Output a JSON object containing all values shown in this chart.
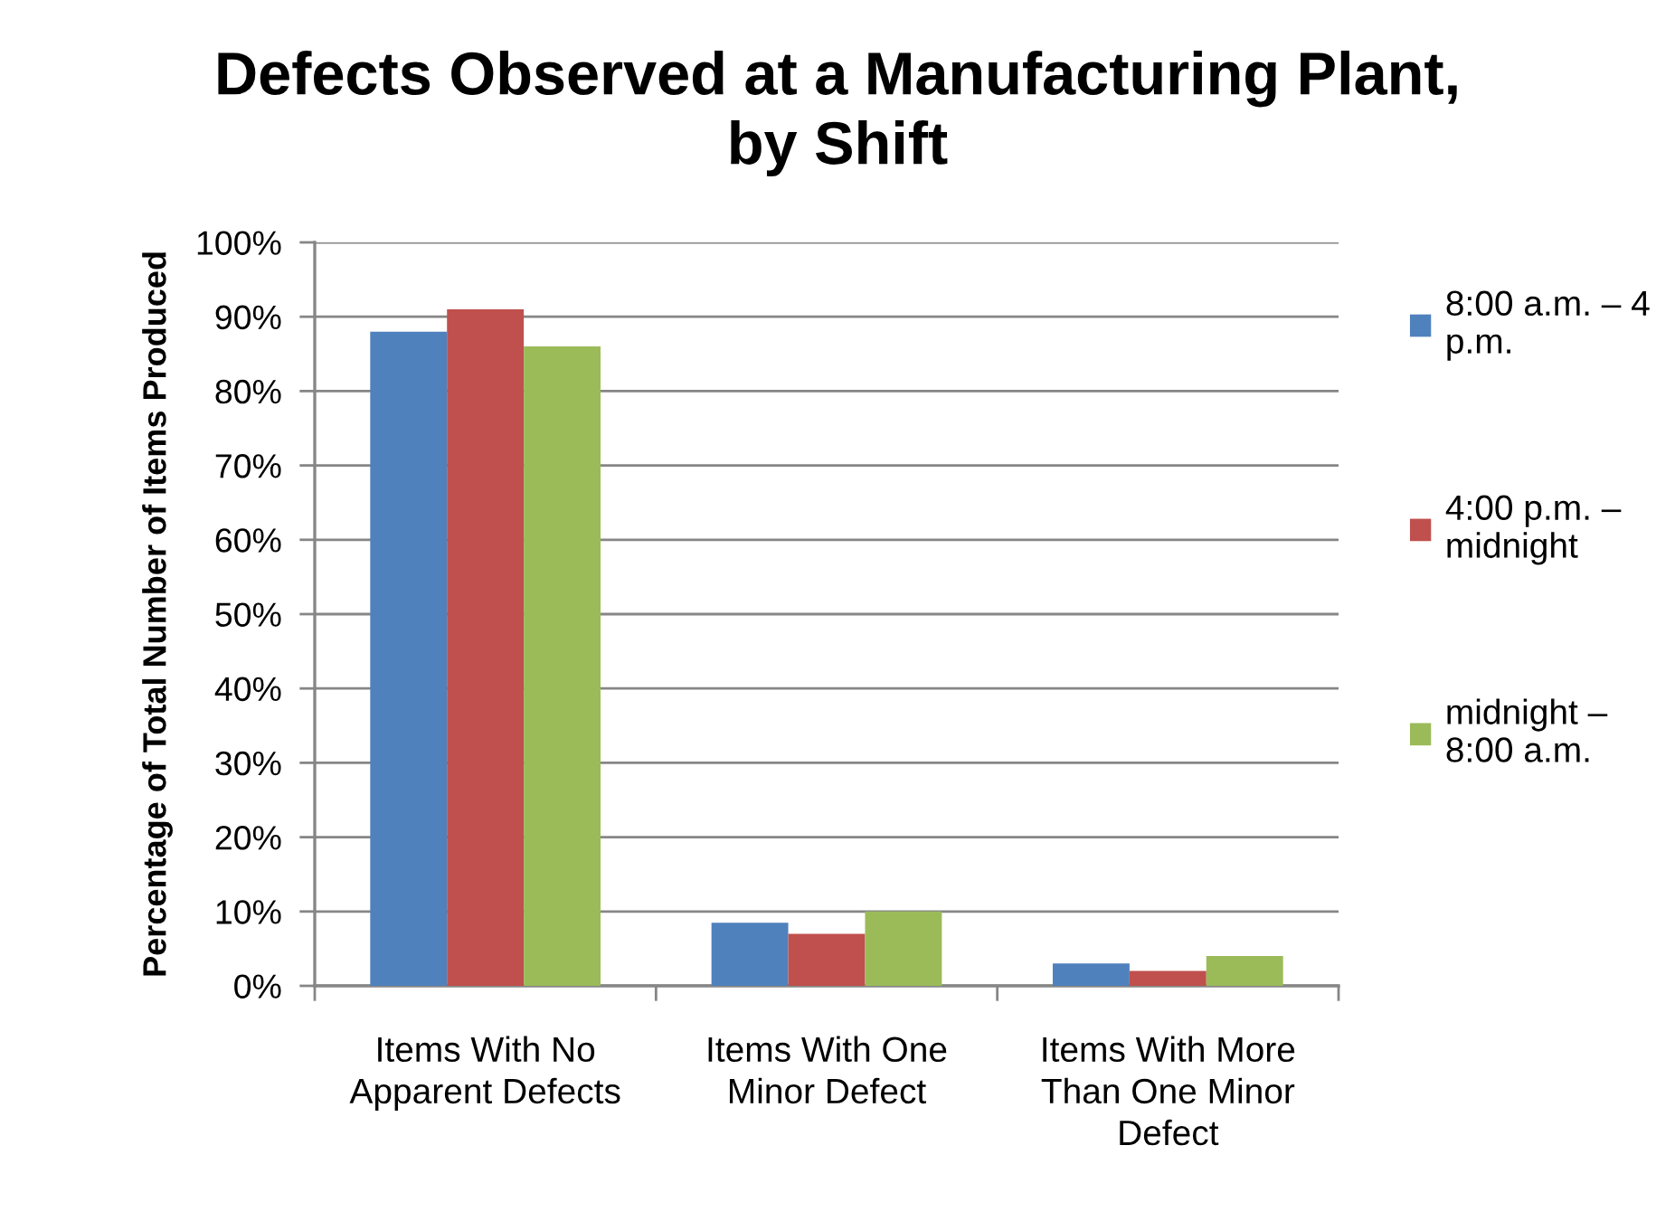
{
  "chart_data": {
    "type": "bar",
    "title": "Defects Observed at a Manufacturing Plant, by Shift",
    "ylabel": "Percentage of Total Number of Items Produced",
    "categories": [
      "Items With No Apparent Defects",
      "Items With One Minor Defect",
      "Items With More Than One Minor Defect"
    ],
    "series": [
      {
        "name": "8:00 a.m. – 4 p.m.",
        "color": "#4f81bd",
        "values": [
          88,
          8.5,
          3
        ]
      },
      {
        "name": "4:00 p.m. – midnight",
        "color": "#c0504d",
        "values": [
          91,
          7,
          2
        ]
      },
      {
        "name": "midnight – 8:00 a.m.",
        "color": "#9bbb59",
        "values": [
          86,
          10,
          4
        ]
      }
    ],
    "ylim": [
      0,
      100
    ],
    "yticks": [
      {
        "value": 0,
        "label": "0%"
      },
      {
        "value": 10,
        "label": "10%"
      },
      {
        "value": 20,
        "label": "20%"
      },
      {
        "value": 30,
        "label": "30%"
      },
      {
        "value": 40,
        "label": "40%"
      },
      {
        "value": 50,
        "label": "50%"
      },
      {
        "value": 60,
        "label": "60%"
      },
      {
        "value": 70,
        "label": "70%"
      },
      {
        "value": 80,
        "label": "80%"
      },
      {
        "value": 90,
        "label": "90%"
      },
      {
        "value": 100,
        "label": "100%"
      }
    ],
    "grid": "y",
    "legend": "right"
  }
}
